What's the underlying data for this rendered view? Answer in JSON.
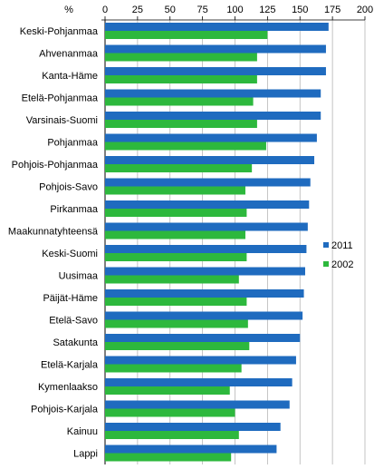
{
  "chart_data": {
    "type": "bar",
    "orientation": "horizontal",
    "unit_label": "%",
    "categories": [
      "Keski-Pohjanmaa",
      "Ahvenanmaa",
      "Kanta-Häme",
      "Etelä-Pohjanmaa",
      "Varsinais-Suomi",
      "Pohjanmaa",
      "Pohjois-Pohjanmaa",
      "Pohjois-Savo",
      "Pirkanmaa",
      "Maakunnatyhteensä",
      "Keski-Suomi",
      "Uusimaa",
      "Päijät-Häme",
      "Etelä-Savo",
      "Satakunta",
      "Etelä-Karjala",
      "Kymenlaakso",
      "Pohjois-Karjala",
      "Kainuu",
      "Lappi"
    ],
    "series": [
      {
        "name": "2011",
        "color": "#1f6bbf",
        "values": [
          172,
          170,
          170,
          166,
          166,
          163,
          161,
          158,
          157,
          156,
          155,
          154,
          153,
          152,
          150,
          147,
          144,
          142,
          135,
          132
        ]
      },
      {
        "name": "2002",
        "color": "#2db83d",
        "values": [
          125,
          117,
          117,
          114,
          117,
          124,
          113,
          108,
          109,
          108,
          109,
          103,
          109,
          110,
          111,
          105,
          96,
          100,
          103,
          97
        ]
      }
    ],
    "xlim": [
      0,
      200
    ],
    "xticks": [
      "0",
      "25",
      "50",
      "75",
      "100",
      "125",
      "150",
      "175",
      "200"
    ],
    "grid": true,
    "legend_position": "right"
  }
}
